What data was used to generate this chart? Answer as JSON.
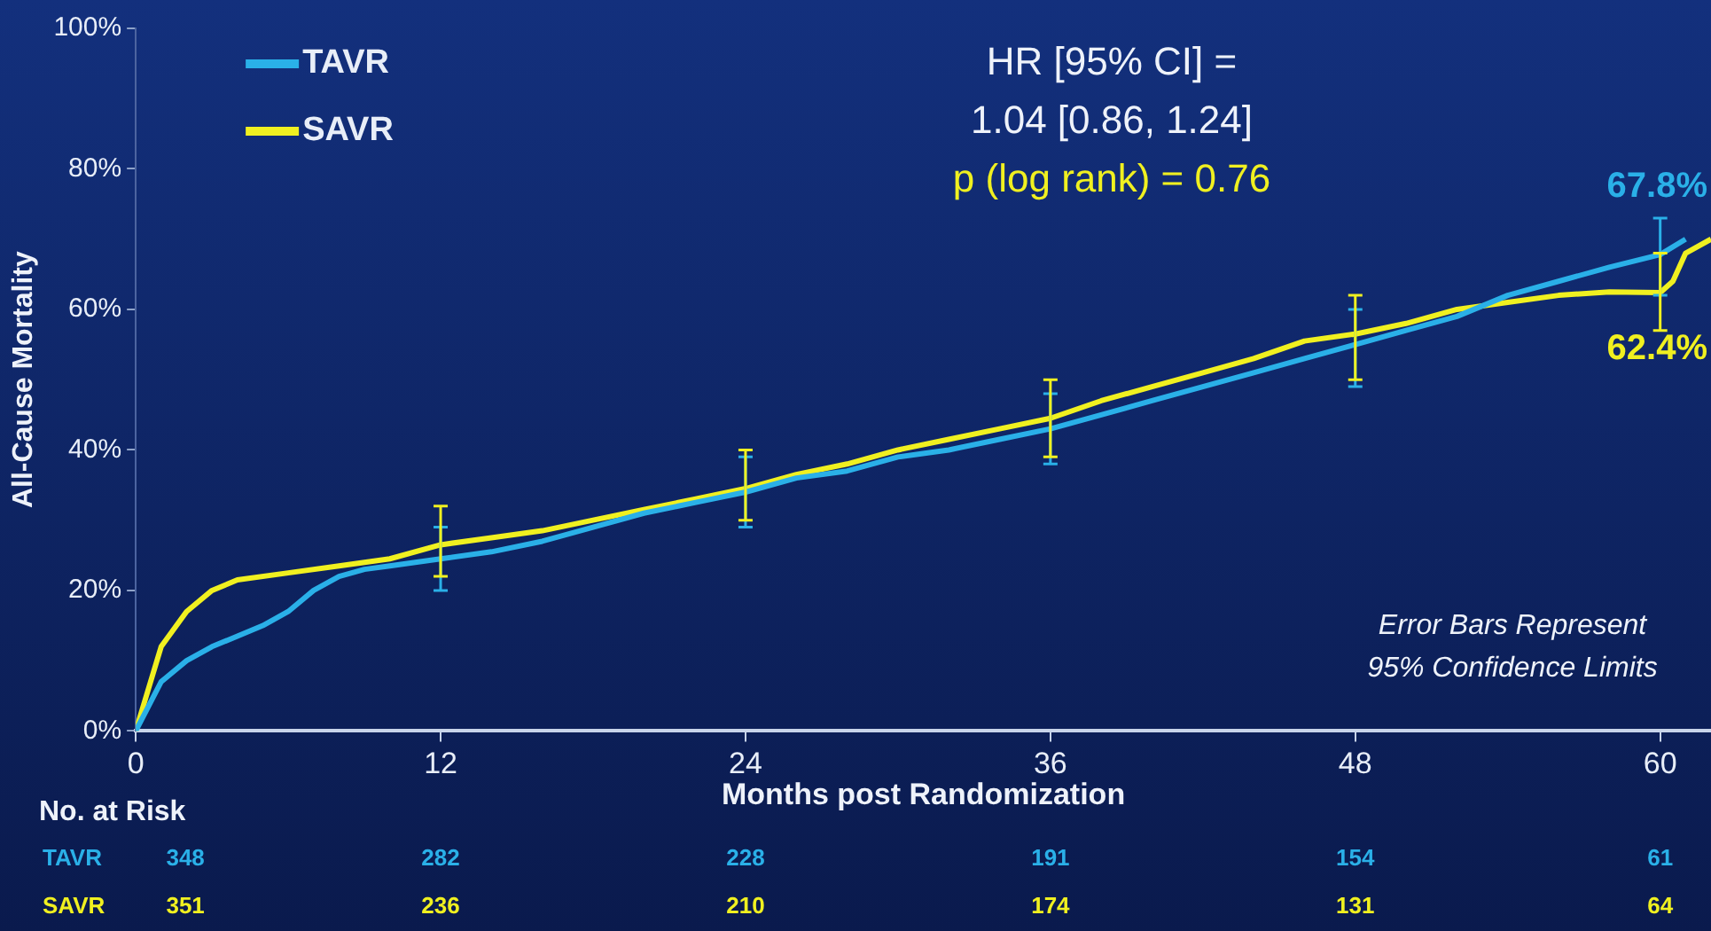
{
  "chart_data": {
    "type": "line",
    "xlabel": "Months post Randomization",
    "ylabel": "All-Cause Mortality",
    "xlim": [
      0,
      62
    ],
    "xticks": [
      0,
      12,
      24,
      36,
      48,
      60
    ],
    "ylim": [
      0,
      100
    ],
    "yticks": [
      {
        "value": 0,
        "label": "0%"
      },
      {
        "value": 20,
        "label": "20%"
      },
      {
        "value": 40,
        "label": "40%"
      },
      {
        "value": 60,
        "label": "60%"
      },
      {
        "value": 80,
        "label": "80%"
      },
      {
        "value": 100,
        "label": "100%"
      }
    ],
    "grid": false,
    "legend": "top left",
    "marker": "none",
    "line_style": "solid",
    "series": [
      {
        "name": "TAVR",
        "color": "#2ab0e8",
        "x": [
          0,
          1,
          2,
          3,
          4,
          5,
          6,
          7,
          8,
          9,
          10,
          12,
          14,
          16,
          18,
          20,
          22,
          24,
          26,
          28,
          30,
          32,
          34,
          36,
          38,
          40,
          42,
          44,
          46,
          48,
          50,
          52,
          54,
          56,
          58,
          60,
          61
        ],
        "values": [
          0,
          7,
          10,
          12,
          13.5,
          15,
          17,
          20,
          22,
          23,
          23.5,
          24.5,
          25.5,
          27,
          29,
          31,
          32.5,
          34,
          36,
          37,
          39,
          40,
          41.5,
          43,
          45,
          47,
          49,
          51,
          53,
          55,
          57,
          59,
          62,
          64,
          66,
          67.8,
          70
        ],
        "errors": [
          null,
          null,
          null,
          null,
          null,
          null,
          null,
          null,
          null,
          null,
          null,
          [
            20,
            29
          ],
          null,
          null,
          null,
          null,
          null,
          [
            29,
            39
          ],
          null,
          null,
          null,
          null,
          null,
          [
            38,
            48
          ],
          null,
          null,
          null,
          null,
          null,
          [
            49,
            60
          ],
          null,
          null,
          null,
          null,
          null,
          [
            62,
            73
          ],
          null
        ],
        "value_labels": [
          null,
          null,
          null,
          null,
          null,
          null,
          null,
          null,
          null,
          null,
          null,
          null,
          null,
          null,
          null,
          null,
          null,
          null,
          null,
          null,
          null,
          null,
          null,
          null,
          null,
          null,
          null,
          null,
          null,
          null,
          null,
          null,
          null,
          null,
          null,
          "67.8%",
          null
        ]
      },
      {
        "name": "SAVR",
        "color": "#f0f020",
        "x": [
          0,
          0.5,
          1,
          2,
          3,
          4,
          6,
          8,
          10,
          12,
          14,
          16,
          18,
          20,
          22,
          24,
          26,
          28,
          30,
          32,
          34,
          36,
          38,
          40,
          42,
          44,
          46,
          48,
          50,
          52,
          54,
          56,
          58,
          60,
          60.5,
          61,
          62
        ],
        "values": [
          0,
          6,
          12,
          17,
          20,
          21.5,
          22.5,
          23.5,
          24.5,
          26.5,
          27.5,
          28.5,
          30,
          31.5,
          33,
          34.5,
          36.5,
          38,
          40,
          41.5,
          43,
          44.5,
          47,
          49,
          51,
          53,
          55.5,
          56.5,
          58,
          60,
          61,
          62,
          62.5,
          62.4,
          64,
          68,
          70
        ],
        "errors": [
          null,
          null,
          null,
          null,
          null,
          null,
          null,
          null,
          null,
          [
            22,
            32
          ],
          null,
          null,
          null,
          null,
          null,
          [
            30,
            40
          ],
          null,
          null,
          null,
          null,
          null,
          [
            39,
            50
          ],
          null,
          null,
          null,
          null,
          null,
          [
            50,
            62
          ],
          null,
          null,
          null,
          null,
          null,
          [
            57,
            68
          ],
          null,
          null,
          null
        ],
        "value_labels": [
          null,
          null,
          null,
          null,
          null,
          null,
          null,
          null,
          null,
          null,
          null,
          null,
          null,
          null,
          null,
          null,
          null,
          null,
          null,
          null,
          null,
          null,
          null,
          null,
          null,
          null,
          null,
          null,
          null,
          null,
          null,
          null,
          null,
          "62.4%",
          null,
          null,
          null
        ]
      }
    ],
    "annotations": [
      "HR [95% CI] =",
      "1.04 [0.86, 1.24]",
      "p (log rank) = 0.76",
      "Error Bars Represent",
      "95% Confidence Limits",
      "No. at Risk",
      "TAVR",
      "348",
      "282",
      "228",
      "191",
      "154",
      "61",
      "SAVR",
      "351",
      "236",
      "210",
      "174",
      "131",
      "64"
    ]
  }
}
